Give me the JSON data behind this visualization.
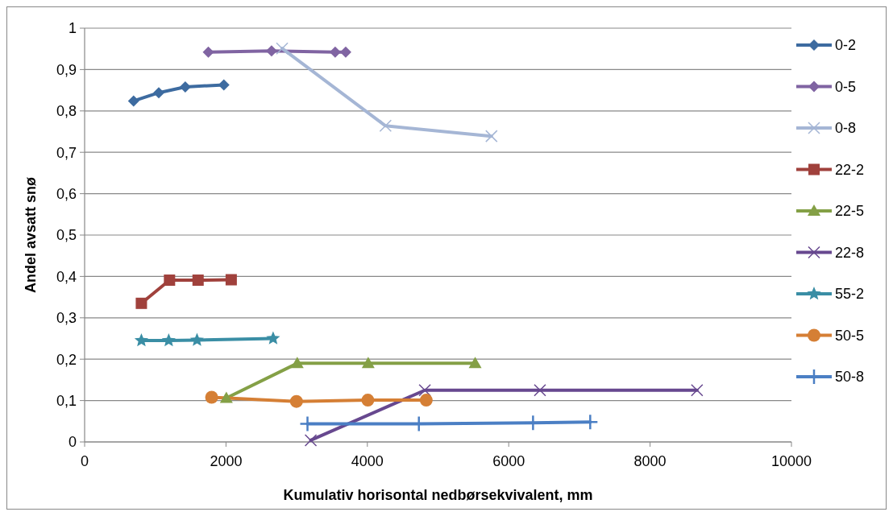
{
  "chart_data": {
    "type": "line",
    "xlabel": "Kumulativ horisontal nedbørsekvivalent, mm",
    "ylabel": "Andel avsatt snø",
    "xlim": [
      0,
      10000
    ],
    "xticks": [
      0,
      2000,
      4000,
      6000,
      8000,
      10000
    ],
    "ylim": [
      0,
      1
    ],
    "yticks": [
      0,
      {
        "value": 0.1,
        "label": "0,1"
      },
      {
        "value": 0.2,
        "label": "0,2"
      },
      {
        "value": 0.3,
        "label": "0,3"
      },
      {
        "value": 0.4,
        "label": "0,4"
      },
      {
        "value": 0.5,
        "label": "0,5"
      },
      {
        "value": 0.6,
        "label": "0,6"
      },
      {
        "value": 0.7,
        "label": "0,7"
      },
      {
        "value": 0.8,
        "label": "0,8"
      },
      {
        "value": 0.9,
        "label": "0,9"
      },
      1
    ],
    "grid": "y",
    "legend": "right",
    "series": [
      {
        "name": "0-2",
        "color": "#3d6ba0",
        "marker": "diamond",
        "x": [
          693,
          1049,
          1424,
          1970
        ],
        "values": [
          0.824,
          0.844,
          0.858,
          0.863
        ]
      },
      {
        "name": "0-5",
        "color": "#8064a2",
        "marker": "diamond",
        "x": [
          1750,
          2645,
          3545,
          3694
        ],
        "values": [
          0.942,
          0.945,
          0.942,
          0.942
        ]
      },
      {
        "name": "0-8",
        "color": "#a5b6d5",
        "marker": "cross",
        "x": [
          2794,
          4257,
          5756
        ],
        "values": [
          0.951,
          0.764,
          0.739
        ]
      },
      {
        "name": "22-2",
        "color": "#a0413c",
        "marker": "square",
        "x": [
          803,
          1201,
          1605,
          2074
        ],
        "values": [
          0.335,
          0.391,
          0.391,
          0.392
        ]
      },
      {
        "name": "22-5",
        "color": "#84a046",
        "marker": "triangle",
        "x": [
          2005,
          3008,
          4012,
          5525
        ],
        "values": [
          0.106,
          0.19,
          0.19,
          0.19
        ]
      },
      {
        "name": "22-8",
        "color": "#67488f",
        "marker": "cross",
        "x": [
          3199,
          4813,
          6442,
          8664
        ],
        "values": [
          0.004,
          0.125,
          0.125,
          0.125
        ]
      },
      {
        "name": "55-2",
        "color": "#3a8ea5",
        "marker": "star",
        "x": [
          803,
          1190,
          1590,
          2667
        ],
        "values": [
          0.245,
          0.245,
          0.246,
          0.25
        ]
      },
      {
        "name": "50-5",
        "color": "#d57f35",
        "marker": "circle",
        "x": [
          1797,
          2997,
          4007,
          4833
        ],
        "values": [
          0.108,
          0.098,
          0.101,
          0.101
        ]
      },
      {
        "name": "50-8",
        "color": "#4b7fc4",
        "marker": "plus",
        "x": [
          3153,
          4729,
          6344,
          7153
        ],
        "values": [
          0.044,
          0.044,
          0.046,
          0.048
        ]
      }
    ]
  }
}
